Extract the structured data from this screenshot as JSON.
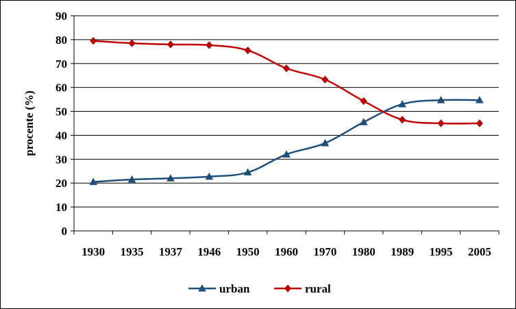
{
  "chart_data": {
    "type": "line",
    "title": "",
    "xlabel": "",
    "ylabel": "procente (%)",
    "categories": [
      "1930",
      "1935",
      "1937",
      "1946",
      "1950",
      "1960",
      "1970",
      "1980",
      "1989",
      "1995",
      "2005"
    ],
    "ylim": [
      0,
      90
    ],
    "yticks": [
      0,
      10,
      20,
      30,
      40,
      50,
      60,
      70,
      80,
      90
    ],
    "grid": "horizontal",
    "legend": "bottom",
    "series": [
      {
        "name": "urban",
        "color": "#1F4E79",
        "marker": "triangle",
        "values": [
          20.5,
          21.5,
          22.0,
          22.7,
          24.5,
          32.0,
          36.7,
          45.5,
          53.0,
          54.7,
          54.7
        ]
      },
      {
        "name": "rural",
        "color": "#C00000",
        "marker": "diamond",
        "values": [
          79.5,
          78.5,
          78.0,
          77.7,
          75.5,
          68.0,
          63.3,
          54.3,
          46.5,
          45.0,
          45.0
        ]
      }
    ]
  }
}
